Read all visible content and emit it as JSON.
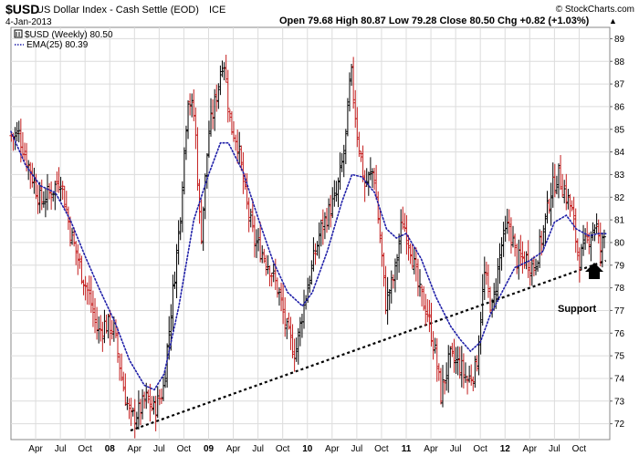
{
  "header": {
    "symbol": "$USD",
    "name": "US Dollar Index - Cash Settle (EOD)",
    "exchange": "ICE",
    "date": "4-Jan-2013",
    "ohlc_text": "Open 79.68  High 80.87  Low 79.28  Close 80.50  Chg +0.82 (+1.03%)",
    "ohlc_arrow": "▲",
    "watermark": "© StockCharts.com"
  },
  "legend": {
    "price_label": "$USD (Weekly) 80.50",
    "ema_label": "EMA(25) 80.39"
  },
  "annotation": {
    "support_label": "Support",
    "arrow_icon": "up-arrow-icon"
  },
  "colors": {
    "up_bar": "#000000",
    "down_bar": "#c41e1e",
    "ema": "#1f1fa8",
    "trendline": "#000000",
    "grid": "#dcdcdc"
  },
  "chart_data": {
    "type": "ohlc",
    "title": "$USD US Dollar Index - Cash Settle (EOD) ICE",
    "timeframe": "Weekly",
    "xlabel": "",
    "ylabel": "",
    "x_tick_labels": [
      "Apr",
      "Jul",
      "Oct",
      "08",
      "Apr",
      "Jul",
      "Oct",
      "09",
      "Apr",
      "Jul",
      "Oct",
      "10",
      "Apr",
      "Jul",
      "Oct",
      "11",
      "Apr",
      "Jul",
      "Oct",
      "12",
      "Apr",
      "Jul",
      "Oct"
    ],
    "y_ticks": [
      72,
      73,
      74,
      75,
      76,
      77,
      78,
      79,
      80,
      81,
      82,
      83,
      84,
      85,
      86,
      87,
      88,
      89
    ],
    "ylim": [
      71.3,
      89.5
    ],
    "xlim": [
      2007.0,
      2013.06
    ],
    "grid": true,
    "legend_position": "top-left",
    "price_series": {
      "name": "$USD (Weekly) 80.50",
      "key_points": [
        [
          2007.0,
          84.7
        ],
        [
          2007.08,
          84.8
        ],
        [
          2007.17,
          83.5
        ],
        [
          2007.3,
          81.8
        ],
        [
          2007.42,
          82.3
        ],
        [
          2007.5,
          82.9
        ],
        [
          2007.6,
          80.5
        ],
        [
          2007.7,
          78.9
        ],
        [
          2007.8,
          77.5
        ],
        [
          2007.88,
          76.0
        ],
        [
          2007.95,
          76.4
        ],
        [
          2008.04,
          76.2
        ],
        [
          2008.13,
          73.8
        ],
        [
          2008.21,
          72.2
        ],
        [
          2008.29,
          72.5
        ],
        [
          2008.37,
          73.1
        ],
        [
          2008.45,
          72.6
        ],
        [
          2008.54,
          73.5
        ],
        [
          2008.62,
          77.0
        ],
        [
          2008.71,
          81.0
        ],
        [
          2008.79,
          86.5
        ],
        [
          2008.86,
          85.5
        ],
        [
          2008.92,
          80.0
        ],
        [
          2009.0,
          84.8
        ],
        [
          2009.08,
          86.5
        ],
        [
          2009.15,
          88.3
        ],
        [
          2009.22,
          85.2
        ],
        [
          2009.29,
          84.5
        ],
        [
          2009.38,
          81.8
        ],
        [
          2009.46,
          80.1
        ],
        [
          2009.54,
          79.6
        ],
        [
          2009.62,
          78.9
        ],
        [
          2009.71,
          77.8
        ],
        [
          2009.79,
          76.1
        ],
        [
          2009.88,
          75.1
        ],
        [
          2009.96,
          77.2
        ],
        [
          2010.04,
          78.8
        ],
        [
          2010.13,
          80.5
        ],
        [
          2010.21,
          81.3
        ],
        [
          2010.29,
          82.0
        ],
        [
          2010.38,
          84.2
        ],
        [
          2010.44,
          87.6
        ],
        [
          2010.5,
          85.0
        ],
        [
          2010.58,
          82.5
        ],
        [
          2010.67,
          83.2
        ],
        [
          2010.75,
          79.5
        ],
        [
          2010.79,
          77.3
        ],
        [
          2010.88,
          78.5
        ],
        [
          2010.96,
          81.0
        ],
        [
          2011.04,
          79.9
        ],
        [
          2011.13,
          77.8
        ],
        [
          2011.21,
          77.0
        ],
        [
          2011.29,
          75.2
        ],
        [
          2011.35,
          73.3
        ],
        [
          2011.44,
          74.9
        ],
        [
          2011.54,
          74.6
        ],
        [
          2011.62,
          73.9
        ],
        [
          2011.71,
          74.5
        ],
        [
          2011.79,
          78.6
        ],
        [
          2011.87,
          77.0
        ],
        [
          2011.96,
          79.8
        ],
        [
          2012.04,
          80.8
        ],
        [
          2012.12,
          79.2
        ],
        [
          2012.21,
          79.3
        ],
        [
          2012.29,
          78.9
        ],
        [
          2012.38,
          80.3
        ],
        [
          2012.46,
          82.2
        ],
        [
          2012.54,
          83.0
        ],
        [
          2012.6,
          82.3
        ],
        [
          2012.67,
          81.5
        ],
        [
          2012.75,
          79.2
        ],
        [
          2012.83,
          80.1
        ],
        [
          2012.92,
          80.9
        ],
        [
          2012.96,
          79.6
        ],
        [
          2013.02,
          80.5
        ]
      ]
    },
    "ema_series": {
      "name": "EMA(25) 80.39",
      "values": [
        [
          2007.0,
          84.9
        ],
        [
          2007.15,
          83.4
        ],
        [
          2007.3,
          82.5
        ],
        [
          2007.45,
          82.2
        ],
        [
          2007.6,
          81.0
        ],
        [
          2007.75,
          79.4
        ],
        [
          2007.9,
          77.9
        ],
        [
          2008.05,
          76.5
        ],
        [
          2008.2,
          74.8
        ],
        [
          2008.35,
          73.7
        ],
        [
          2008.45,
          73.5
        ],
        [
          2008.55,
          74.2
        ],
        [
          2008.7,
          77.2
        ],
        [
          2008.85,
          81.0
        ],
        [
          2009.0,
          83.0
        ],
        [
          2009.12,
          84.4
        ],
        [
          2009.2,
          84.4
        ],
        [
          2009.35,
          83.1
        ],
        [
          2009.5,
          81.1
        ],
        [
          2009.65,
          79.2
        ],
        [
          2009.8,
          77.8
        ],
        [
          2009.95,
          77.2
        ],
        [
          2010.05,
          77.8
        ],
        [
          2010.2,
          79.6
        ],
        [
          2010.35,
          81.8
        ],
        [
          2010.45,
          83.0
        ],
        [
          2010.55,
          82.9
        ],
        [
          2010.68,
          82.2
        ],
        [
          2010.8,
          80.6
        ],
        [
          2010.9,
          80.2
        ],
        [
          2011.0,
          80.4
        ],
        [
          2011.15,
          79.3
        ],
        [
          2011.3,
          77.6
        ],
        [
          2011.45,
          76.3
        ],
        [
          2011.55,
          75.7
        ],
        [
          2011.65,
          75.2
        ],
        [
          2011.75,
          75.6
        ],
        [
          2011.85,
          76.8
        ],
        [
          2011.98,
          77.9
        ],
        [
          2012.1,
          78.9
        ],
        [
          2012.25,
          79.2
        ],
        [
          2012.38,
          79.6
        ],
        [
          2012.5,
          80.9
        ],
        [
          2012.62,
          81.2
        ],
        [
          2012.72,
          80.6
        ],
        [
          2012.85,
          80.3
        ],
        [
          2012.95,
          80.4
        ],
        [
          2013.02,
          80.39
        ]
      ]
    },
    "trendline": {
      "label": "Support",
      "start": [
        2008.21,
        71.7
      ],
      "end": [
        2013.02,
        79.2
      ]
    }
  }
}
